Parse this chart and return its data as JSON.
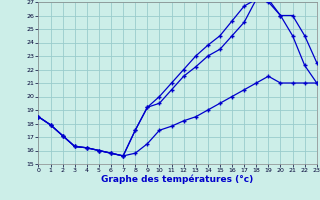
{
  "xlabel": "Graphe des températures (°c)",
  "bg_color": "#cceee8",
  "grid_color": "#99cccc",
  "line_color": "#0000cc",
  "ylim": [
    15,
    27
  ],
  "xlim": [
    0,
    23
  ],
  "yticks": [
    15,
    16,
    17,
    18,
    19,
    20,
    21,
    22,
    23,
    24,
    25,
    26,
    27
  ],
  "xticks": [
    0,
    1,
    2,
    3,
    4,
    5,
    6,
    7,
    8,
    9,
    10,
    11,
    12,
    13,
    14,
    15,
    16,
    17,
    18,
    19,
    20,
    21,
    22,
    23
  ],
  "line1_x": [
    0,
    1,
    2,
    3,
    4,
    5,
    6,
    7,
    8,
    9,
    10,
    11,
    12,
    13,
    14,
    15,
    16,
    17,
    18,
    19,
    20,
    21,
    22,
    23
  ],
  "line1_y": [
    18.5,
    17.9,
    17.1,
    16.3,
    16.2,
    16.0,
    15.8,
    15.6,
    15.8,
    16.5,
    17.5,
    17.8,
    18.2,
    18.5,
    19.0,
    19.5,
    20.0,
    20.5,
    21.0,
    21.5,
    21.0,
    21.0,
    21.0,
    21.0
  ],
  "line2_x": [
    0,
    1,
    2,
    3,
    4,
    5,
    6,
    7,
    8,
    9,
    10,
    11,
    12,
    13,
    14,
    15,
    16,
    17,
    18,
    19,
    20,
    21,
    22,
    23
  ],
  "line2_y": [
    18.5,
    17.9,
    17.1,
    16.3,
    16.2,
    16.0,
    15.8,
    15.6,
    17.5,
    19.2,
    20.0,
    21.0,
    22.0,
    23.0,
    23.8,
    24.5,
    25.6,
    26.7,
    27.2,
    27.2,
    26.0,
    24.5,
    22.3,
    21.0
  ],
  "line3_x": [
    0,
    1,
    2,
    3,
    4,
    5,
    6,
    7,
    8,
    9,
    10,
    11,
    12,
    13,
    14,
    15,
    16,
    17,
    18,
    19,
    20,
    21,
    22,
    23
  ],
  "line3_y": [
    18.5,
    17.9,
    17.1,
    16.3,
    16.2,
    16.0,
    15.8,
    15.6,
    17.5,
    19.2,
    19.5,
    20.5,
    21.5,
    22.2,
    23.0,
    23.5,
    24.5,
    25.5,
    27.2,
    27.0,
    26.0,
    26.0,
    24.5,
    22.5
  ]
}
